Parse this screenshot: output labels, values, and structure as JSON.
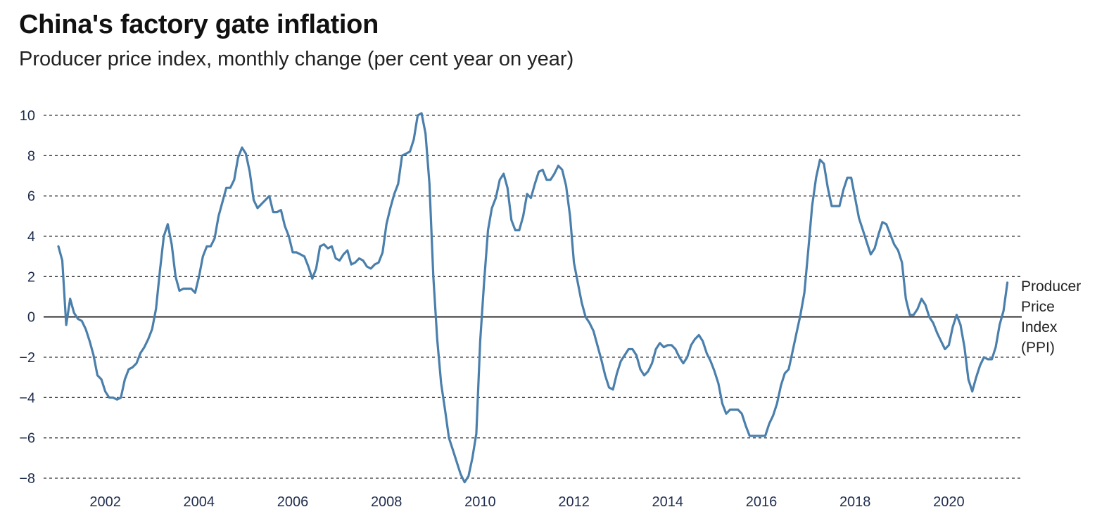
{
  "title": "China's factory gate inflation",
  "subtitle": "Producer price index, monthly change (per cent year on year)",
  "colors": {
    "line": "#4a7fac",
    "grid": "#333333",
    "zero": "#111111",
    "tick_text": "#1f2d4d"
  },
  "chart_data": {
    "type": "line",
    "title": "China's factory gate inflation",
    "subtitle": "Producer price index, monthly change (per cent year on year)",
    "xlabel": "",
    "ylabel": "",
    "ylim": [
      -8,
      10
    ],
    "xlim": [
      "2001-01",
      "2021-05"
    ],
    "y_ticks": [
      -8,
      -6,
      -4,
      -2,
      0,
      2,
      4,
      6,
      8,
      10
    ],
    "y_tick_labels": [
      "−8",
      "−6",
      "−4",
      "−2",
      "0",
      "2",
      "4",
      "6",
      "8",
      "10"
    ],
    "x_ticks": [
      2002,
      2004,
      2006,
      2008,
      2010,
      2012,
      2014,
      2016,
      2018,
      2020
    ],
    "x_tick_labels": [
      "2002",
      "2004",
      "2006",
      "2008",
      "2010",
      "2012",
      "2014",
      "2016",
      "2018",
      "2020"
    ],
    "grid": "horizontal dashed",
    "legend": "series label at right end of line",
    "series": [
      {
        "name": "Producer Price Index (PPI)",
        "start": "2001-01",
        "frequency": "monthly",
        "values": [
          3.5,
          2.8,
          -0.4,
          0.9,
          0.2,
          -0.1,
          -0.2,
          -0.6,
          -1.2,
          -1.9,
          -2.9,
          -3.1,
          -3.7,
          -4.0,
          -4.0,
          -4.1,
          -4.0,
          -3.1,
          -2.6,
          -2.5,
          -2.3,
          -1.8,
          -1.5,
          -1.1,
          -0.6,
          0.4,
          2.3,
          4.0,
          4.6,
          3.6,
          2.0,
          1.3,
          1.4,
          1.4,
          1.4,
          1.2,
          2.0,
          3.0,
          3.5,
          3.5,
          3.9,
          5.0,
          5.7,
          6.4,
          6.4,
          6.8,
          7.9,
          8.4,
          8.1,
          7.2,
          5.8,
          5.4,
          5.6,
          5.8,
          6.0,
          5.2,
          5.2,
          5.3,
          4.5,
          4.0,
          3.2,
          3.2,
          3.1,
          3.0,
          2.5,
          1.9,
          2.4,
          3.5,
          3.6,
          3.4,
          3.5,
          2.9,
          2.8,
          3.1,
          3.3,
          2.6,
          2.7,
          2.9,
          2.8,
          2.5,
          2.4,
          2.6,
          2.7,
          3.2,
          4.6,
          5.4,
          6.1,
          6.6,
          8.0,
          8.1,
          8.2,
          8.8,
          10.0,
          10.1,
          9.1,
          6.6,
          2.0,
          -1.1,
          -3.3,
          -4.6,
          -6.0,
          -6.6,
          -7.2,
          -7.8,
          -8.2,
          -7.9,
          -7.0,
          -5.8,
          -1.2,
          1.7,
          4.3,
          5.4,
          5.9,
          6.8,
          7.1,
          6.4,
          4.8,
          4.3,
          4.3,
          5.0,
          6.1,
          5.9,
          6.6,
          7.2,
          7.3,
          6.8,
          6.8,
          7.1,
          7.5,
          7.3,
          6.5,
          5.0,
          2.7,
          1.7,
          0.7,
          0.0,
          -0.3,
          -0.7,
          -1.4,
          -2.1,
          -2.9,
          -3.5,
          -3.6,
          -2.8,
          -2.2,
          -1.9,
          -1.6,
          -1.6,
          -1.9,
          -2.6,
          -2.9,
          -2.7,
          -2.3,
          -1.6,
          -1.3,
          -1.5,
          -1.4,
          -1.4,
          -1.6,
          -2.0,
          -2.3,
          -2.0,
          -1.4,
          -1.1,
          -0.9,
          -1.2,
          -1.8,
          -2.2,
          -2.7,
          -3.3,
          -4.3,
          -4.8,
          -4.6,
          -4.6,
          -4.6,
          -4.8,
          -5.4,
          -5.9,
          -5.9,
          -5.9,
          -5.9,
          -5.9,
          -5.3,
          -4.9,
          -4.3,
          -3.4,
          -2.8,
          -2.6,
          -1.7,
          -0.8,
          0.1,
          1.2,
          3.3,
          5.5,
          6.9,
          7.8,
          7.6,
          6.4,
          5.5,
          5.5,
          5.5,
          6.3,
          6.9,
          6.9,
          5.9,
          4.9,
          4.3,
          3.7,
          3.1,
          3.4,
          4.1,
          4.7,
          4.6,
          4.1,
          3.6,
          3.3,
          2.7,
          0.9,
          0.1,
          0.1,
          0.4,
          0.9,
          0.6,
          0.0,
          -0.3,
          -0.8,
          -1.2,
          -1.6,
          -1.4,
          -0.5,
          0.1,
          -0.4,
          -1.5,
          -3.1,
          -3.7,
          -3.0,
          -2.4,
          -2.0,
          -2.1,
          -2.1,
          -1.5,
          -0.4,
          0.3,
          1.7
        ]
      }
    ]
  }
}
